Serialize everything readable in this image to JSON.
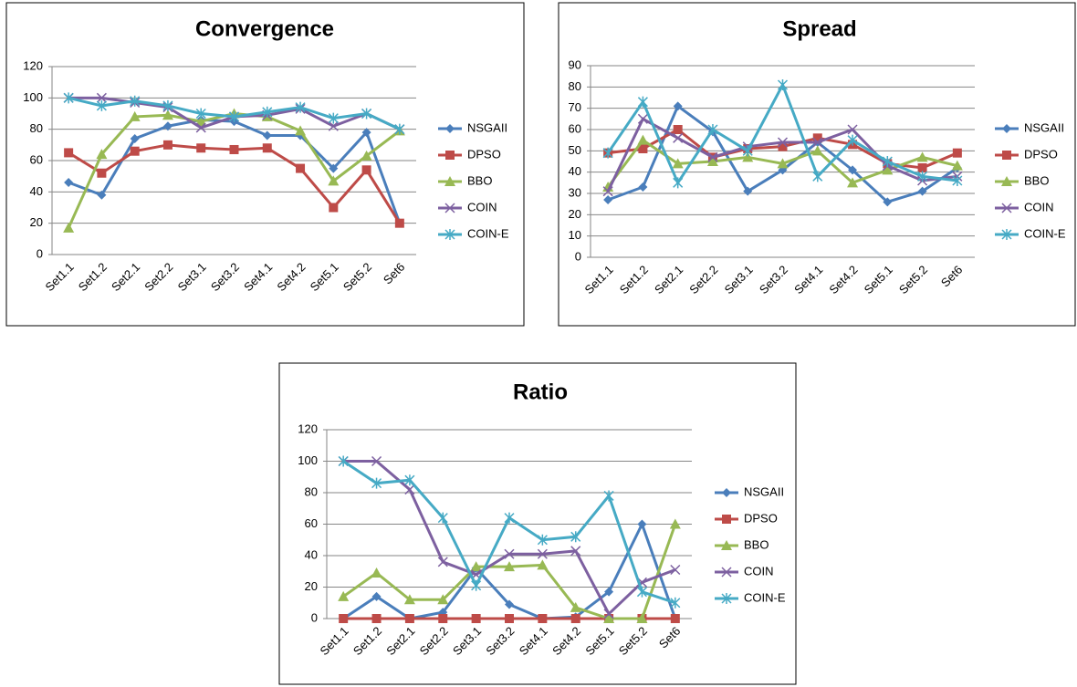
{
  "chart_data": [
    {
      "type": "line",
      "title": "Convergence",
      "categories": [
        "Set1.1",
        "Set1.2",
        "Set2.1",
        "Set2.2",
        "Set3.1",
        "Set3.2",
        "Set4.1",
        "Set4.2",
        "Set5.1",
        "Set5.2",
        "Set6"
      ],
      "ylim": [
        0,
        120
      ],
      "yticks": [
        0,
        20,
        40,
        60,
        80,
        100,
        120
      ],
      "grid": true,
      "legend": "right",
      "series": [
        {
          "name": "NSGAII",
          "color": "#4a7ebb",
          "marker": "diamond",
          "values": [
            46,
            38,
            74,
            82,
            86,
            85,
            76,
            76,
            55,
            78,
            20
          ]
        },
        {
          "name": "DPSO",
          "color": "#be4b48",
          "marker": "square",
          "values": [
            65,
            52,
            66,
            70,
            68,
            67,
            68,
            55,
            30,
            54,
            20
          ]
        },
        {
          "name": "BBO",
          "color": "#98b954",
          "marker": "triangle",
          "values": [
            17,
            64,
            88,
            89,
            85,
            90,
            88,
            79,
            47,
            63,
            79
          ]
        },
        {
          "name": "COIN",
          "color": "#7d60a0",
          "marker": "x",
          "values": [
            100,
            100,
            97,
            94,
            81,
            88,
            89,
            93,
            82,
            90,
            80
          ]
        },
        {
          "name": "COIN-E",
          "color": "#46aac5",
          "marker": "star",
          "values": [
            100,
            95,
            98,
            95,
            90,
            88,
            91,
            94,
            87,
            90,
            80
          ]
        }
      ]
    },
    {
      "type": "line",
      "title": "Spread",
      "categories": [
        "Set1.1",
        "Set1.2",
        "Set2.1",
        "Set2.2",
        "Set3.1",
        "Set3.2",
        "Set4.1",
        "Set4.2",
        "Set5.1",
        "Set5.2",
        "Set6"
      ],
      "ylim": [
        0,
        90
      ],
      "yticks": [
        0,
        10,
        20,
        30,
        40,
        50,
        60,
        70,
        80,
        90
      ],
      "grid": true,
      "legend": "right",
      "series": [
        {
          "name": "NSGAII",
          "color": "#4a7ebb",
          "marker": "diamond",
          "values": [
            27,
            33,
            71,
            59,
            31,
            41,
            54,
            41,
            26,
            31,
            42
          ]
        },
        {
          "name": "DPSO",
          "color": "#be4b48",
          "marker": "square",
          "values": [
            49,
            51,
            60,
            47,
            51,
            52,
            56,
            53,
            44,
            42,
            49
          ]
        },
        {
          "name": "BBO",
          "color": "#98b954",
          "marker": "triangle",
          "values": [
            33,
            55,
            44,
            45,
            47,
            44,
            50,
            35,
            41,
            47,
            43
          ]
        },
        {
          "name": "COIN",
          "color": "#7d60a0",
          "marker": "x",
          "values": [
            31,
            65,
            56,
            47,
            52,
            54,
            54,
            60,
            43,
            36,
            38
          ]
        },
        {
          "name": "COIN-E",
          "color": "#46aac5",
          "marker": "star",
          "values": [
            49,
            73,
            35,
            60,
            50,
            81,
            38,
            55,
            45,
            38,
            36
          ]
        }
      ]
    },
    {
      "type": "line",
      "title": "Ratio",
      "categories": [
        "Set1.1",
        "Set1.2",
        "Set2.1",
        "Set2.2",
        "Set3.1",
        "Set3.2",
        "Set4.1",
        "Set4.2",
        "Set5.1",
        "Set5.2",
        "Set6"
      ],
      "ylim": [
        0,
        120
      ],
      "yticks": [
        0,
        20,
        40,
        60,
        80,
        100,
        120
      ],
      "grid": true,
      "legend": "right",
      "series": [
        {
          "name": "NSGAII",
          "color": "#4a7ebb",
          "marker": "diamond",
          "values": [
            0,
            14,
            0,
            4,
            32,
            9,
            0,
            1,
            17,
            60,
            0
          ]
        },
        {
          "name": "DPSO",
          "color": "#be4b48",
          "marker": "square",
          "values": [
            0,
            0,
            0,
            0,
            0,
            0,
            0,
            0,
            0,
            0,
            0
          ]
        },
        {
          "name": "BBO",
          "color": "#98b954",
          "marker": "triangle",
          "values": [
            14,
            29,
            12,
            12,
            33,
            33,
            34,
            7,
            0,
            0,
            60
          ]
        },
        {
          "name": "COIN",
          "color": "#7d60a0",
          "marker": "x",
          "values": [
            100,
            100,
            82,
            36,
            28,
            41,
            41,
            43,
            3,
            23,
            31
          ]
        },
        {
          "name": "COIN-E",
          "color": "#46aac5",
          "marker": "star",
          "values": [
            100,
            86,
            88,
            64,
            21,
            64,
            50,
            52,
            78,
            17,
            10
          ]
        }
      ]
    }
  ]
}
